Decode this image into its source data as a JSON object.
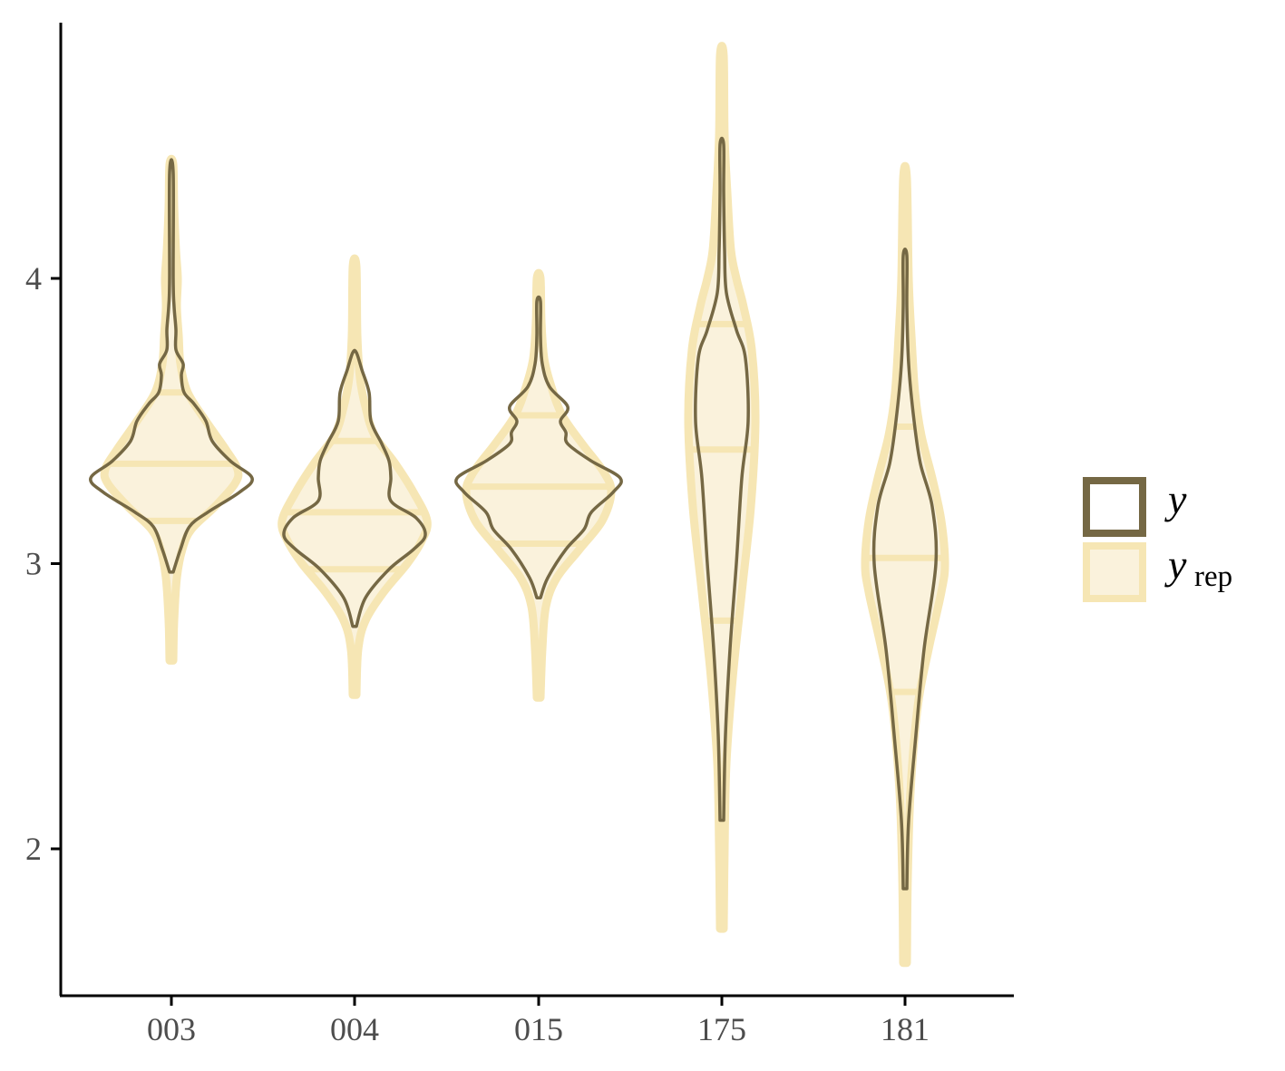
{
  "chart_data": {
    "type": "violin",
    "categories": [
      "003",
      "004",
      "015",
      "175",
      "181"
    ],
    "ylim": [
      1.5,
      4.9
    ],
    "yticks": [
      2,
      3,
      4
    ],
    "ytick_labels": [
      "2",
      "3",
      "4"
    ],
    "grid": false,
    "legend_position": "right",
    "legend": [
      {
        "key": "y",
        "label": "y",
        "sub": ""
      },
      {
        "key": "yrep",
        "label": "y",
        "sub": "rep"
      }
    ],
    "colors": {
      "y_stroke": "#756844",
      "yrep_fill": "#faf2dc",
      "yrep_stroke": "#f6e6b4"
    },
    "series": [
      {
        "key": "yrep",
        "violins": [
          {
            "category": "003",
            "profile": [
              [
                2.66,
                2
              ],
              [
                2.8,
                3
              ],
              [
                2.95,
                6
              ],
              [
                3.05,
                12
              ],
              [
                3.12,
                22
              ],
              [
                3.2,
                48
              ],
              [
                3.28,
                70
              ],
              [
                3.33,
                73
              ],
              [
                3.4,
                60
              ],
              [
                3.5,
                38
              ],
              [
                3.6,
                18
              ],
              [
                3.7,
                10
              ],
              [
                3.8,
                8
              ],
              [
                3.9,
                6
              ],
              [
                4.0,
                7
              ],
              [
                4.1,
                5
              ],
              [
                4.25,
                3
              ],
              [
                4.4,
                2
              ]
            ],
            "quantiles": [
              3.15,
              3.35,
              3.6
            ]
          },
          {
            "category": "004",
            "profile": [
              [
                2.54,
                2
              ],
              [
                2.7,
                4
              ],
              [
                2.8,
                12
              ],
              [
                2.9,
                32
              ],
              [
                3.0,
                58
              ],
              [
                3.08,
                74
              ],
              [
                3.15,
                80
              ],
              [
                3.25,
                65
              ],
              [
                3.35,
                45
              ],
              [
                3.45,
                22
              ],
              [
                3.55,
                12
              ],
              [
                3.65,
                6
              ],
              [
                3.8,
                3
              ],
              [
                4.04,
                2
              ]
            ],
            "quantiles": [
              2.98,
              3.18,
              3.43
            ]
          },
          {
            "category": "015",
            "profile": [
              [
                2.53,
                2
              ],
              [
                2.7,
                4
              ],
              [
                2.85,
                8
              ],
              [
                2.95,
                20
              ],
              [
                3.05,
                45
              ],
              [
                3.15,
                70
              ],
              [
                3.25,
                80
              ],
              [
                3.32,
                72
              ],
              [
                3.42,
                48
              ],
              [
                3.52,
                26
              ],
              [
                3.62,
                14
              ],
              [
                3.72,
                6
              ],
              [
                3.85,
                3
              ],
              [
                4.0,
                2
              ]
            ],
            "quantiles": [
              3.07,
              3.27,
              3.52
            ]
          },
          {
            "category": "175",
            "profile": [
              [
                1.72,
                2
              ],
              [
                2.0,
                3
              ],
              [
                2.3,
                5
              ],
              [
                2.6,
                12
              ],
              [
                2.9,
                22
              ],
              [
                3.2,
                32
              ],
              [
                3.5,
                37
              ],
              [
                3.75,
                33
              ],
              [
                3.9,
                24
              ],
              [
                4.0,
                16
              ],
              [
                4.1,
                10
              ],
              [
                4.3,
                6
              ],
              [
                4.5,
                3
              ],
              [
                4.78,
                2
              ]
            ],
            "quantiles": [
              2.8,
              3.4,
              3.84
            ]
          },
          {
            "category": "181",
            "profile": [
              [
                1.6,
                2
              ],
              [
                1.9,
                3
              ],
              [
                2.2,
                6
              ],
              [
                2.5,
                14
              ],
              [
                2.7,
                26
              ],
              [
                2.9,
                40
              ],
              [
                3.0,
                44
              ],
              [
                3.15,
                40
              ],
              [
                3.3,
                30
              ],
              [
                3.45,
                18
              ],
              [
                3.6,
                11
              ],
              [
                3.8,
                7
              ],
              [
                4.0,
                4
              ],
              [
                4.35,
                2
              ]
            ],
            "quantiles": [
              2.55,
              3.02,
              3.48
            ]
          }
        ]
      },
      {
        "key": "y",
        "violins": [
          {
            "category": "003",
            "profile": [
              [
                2.97,
                2
              ],
              [
                3.05,
                10
              ],
              [
                3.13,
                20
              ],
              [
                3.18,
                40
              ],
              [
                3.25,
                75
              ],
              [
                3.3,
                89
              ],
              [
                3.36,
                65
              ],
              [
                3.43,
                45
              ],
              [
                3.5,
                38
              ],
              [
                3.56,
                25
              ],
              [
                3.6,
                14
              ],
              [
                3.66,
                11
              ],
              [
                3.7,
                13
              ],
              [
                3.75,
                5
              ],
              [
                3.82,
                5
              ],
              [
                3.9,
                3
              ],
              [
                4.0,
                2
              ],
              [
                4.37,
                2
              ]
            ],
            "quantiles": []
          },
          {
            "category": "004",
            "profile": [
              [
                2.78,
                2
              ],
              [
                2.88,
                12
              ],
              [
                2.98,
                38
              ],
              [
                3.05,
                65
              ],
              [
                3.1,
                78
              ],
              [
                3.16,
                68
              ],
              [
                3.22,
                40
              ],
              [
                3.3,
                40
              ],
              [
                3.36,
                38
              ],
              [
                3.42,
                30
              ],
              [
                3.5,
                18
              ],
              [
                3.6,
                16
              ],
              [
                3.68,
                8
              ],
              [
                3.74,
                2
              ]
            ],
            "quantiles": []
          },
          {
            "category": "015",
            "profile": [
              [
                2.88,
                2
              ],
              [
                2.95,
                10
              ],
              [
                3.05,
                30
              ],
              [
                3.12,
                50
              ],
              [
                3.18,
                58
              ],
              [
                3.25,
                82
              ],
              [
                3.3,
                90
              ],
              [
                3.36,
                58
              ],
              [
                3.42,
                32
              ],
              [
                3.46,
                30
              ],
              [
                3.5,
                24
              ],
              [
                3.55,
                32
              ],
              [
                3.62,
                12
              ],
              [
                3.7,
                4
              ],
              [
                3.8,
                2
              ],
              [
                3.92,
                2
              ]
            ],
            "quantiles": []
          },
          {
            "category": "175",
            "profile": [
              [
                2.1,
                2
              ],
              [
                2.4,
                4
              ],
              [
                2.7,
                9
              ],
              [
                3.0,
                16
              ],
              [
                3.3,
                22
              ],
              [
                3.5,
                29
              ],
              [
                3.72,
                26
              ],
              [
                3.82,
                16
              ],
              [
                3.95,
                5
              ],
              [
                4.1,
                3
              ],
              [
                4.3,
                2
              ],
              [
                4.47,
                2
              ]
            ],
            "quantiles": []
          },
          {
            "category": "181",
            "profile": [
              [
                1.86,
                2
              ],
              [
                2.1,
                4
              ],
              [
                2.4,
                12
              ],
              [
                2.7,
                21
              ],
              [
                3.0,
                34
              ],
              [
                3.2,
                30
              ],
              [
                3.35,
                17
              ],
              [
                3.5,
                10
              ],
              [
                3.7,
                4
              ],
              [
                3.9,
                2
              ],
              [
                4.08,
                2
              ]
            ],
            "quantiles": []
          }
        ]
      }
    ]
  }
}
